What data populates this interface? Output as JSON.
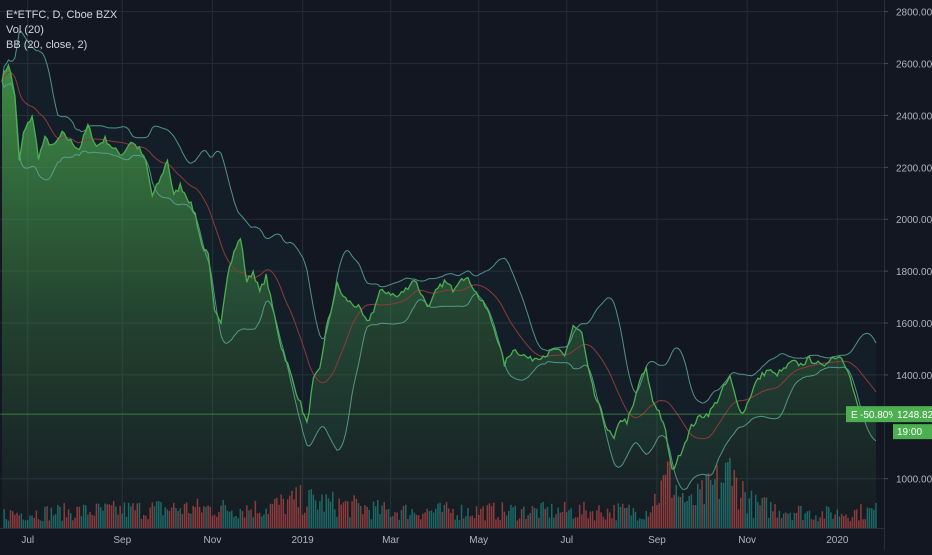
{
  "legend": {
    "symbol_line": "E*ETFC, D, Cboe BZX",
    "indicator_volume": "Vol (20)",
    "indicator_bb": "BB (20, close, 2)"
  },
  "price_badge": {
    "symbol": "E",
    "change": "-50.80%",
    "price": "1248.82",
    "countdown": "19:00"
  },
  "colors": {
    "background": "#131722",
    "price_line": "#4caf50",
    "bb_band": "#5aa897",
    "bb_basis": "#8e3a3a",
    "volume_up": "#26a69a",
    "volume_down": "#ef5350",
    "badge": "#4caf50"
  },
  "chart_data": {
    "type": "area",
    "y_axis": {
      "ticks": [
        "2800.00",
        "2600.00",
        "2400.00",
        "2200.00",
        "2000.00",
        "1800.00",
        "1600.00",
        "1400.00",
        "1000.00"
      ],
      "ylim": [
        810,
        2845
      ],
      "grid": true
    },
    "x_axis": {
      "ticks": [
        {
          "label": "Jul",
          "t": 12
        },
        {
          "label": "Sep",
          "t": 56
        },
        {
          "label": "Nov",
          "t": 98
        },
        {
          "label": "2019",
          "t": 140
        },
        {
          "label": "Mar",
          "t": 181
        },
        {
          "label": "May",
          "t": 222
        },
        {
          "label": "Jul",
          "t": 263
        },
        {
          "label": "Sep",
          "t": 305
        },
        {
          "label": "Nov",
          "t": 347
        },
        {
          "label": "2020",
          "t": 389
        }
      ],
      "range": [
        0,
        407
      ],
      "grid": true
    },
    "last_price": 1248.82,
    "price_keypoints": [
      [
        0,
        2540
      ],
      [
        3,
        2600
      ],
      [
        6,
        2480
      ],
      [
        8,
        2220
      ],
      [
        10,
        2330
      ],
      [
        14,
        2400
      ],
      [
        17,
        2240
      ],
      [
        20,
        2310
      ],
      [
        24,
        2280
      ],
      [
        28,
        2330
      ],
      [
        32,
        2300
      ],
      [
        36,
        2270
      ],
      [
        40,
        2360
      ],
      [
        44,
        2280
      ],
      [
        48,
        2310
      ],
      [
        52,
        2270
      ],
      [
        56,
        2250
      ],
      [
        60,
        2300
      ],
      [
        64,
        2270
      ],
      [
        67,
        2220
      ],
      [
        70,
        2090
      ],
      [
        74,
        2160
      ],
      [
        77,
        2230
      ],
      [
        80,
        2090
      ],
      [
        83,
        2130
      ],
      [
        86,
        2090
      ],
      [
        90,
        2020
      ],
      [
        93,
        1900
      ],
      [
        96,
        1860
      ],
      [
        99,
        1640
      ],
      [
        102,
        1610
      ],
      [
        105,
        1790
      ],
      [
        108,
        1870
      ],
      [
        111,
        1930
      ],
      [
        114,
        1760
      ],
      [
        117,
        1800
      ],
      [
        120,
        1720
      ],
      [
        123,
        1780
      ],
      [
        126,
        1660
      ],
      [
        130,
        1510
      ],
      [
        133,
        1440
      ],
      [
        136,
        1360
      ],
      [
        139,
        1290
      ],
      [
        142,
        1210
      ],
      [
        145,
        1380
      ],
      [
        148,
        1420
      ],
      [
        151,
        1580
      ],
      [
        153,
        1640
      ],
      [
        156,
        1750
      ],
      [
        159,
        1700
      ],
      [
        162,
        1680
      ],
      [
        166,
        1660
      ],
      [
        170,
        1600
      ],
      [
        173,
        1650
      ],
      [
        176,
        1720
      ],
      [
        180,
        1720
      ],
      [
        184,
        1700
      ],
      [
        188,
        1730
      ],
      [
        192,
        1770
      ],
      [
        196,
        1700
      ],
      [
        199,
        1660
      ],
      [
        202,
        1720
      ],
      [
        206,
        1760
      ],
      [
        210,
        1730
      ],
      [
        214,
        1780
      ],
      [
        218,
        1760
      ],
      [
        222,
        1700
      ],
      [
        226,
        1650
      ],
      [
        230,
        1560
      ],
      [
        234,
        1440
      ],
      [
        238,
        1500
      ],
      [
        242,
        1480
      ],
      [
        246,
        1460
      ],
      [
        250,
        1470
      ],
      [
        254,
        1480
      ],
      [
        258,
        1500
      ],
      [
        262,
        1470
      ],
      [
        266,
        1590
      ],
      [
        270,
        1560
      ],
      [
        273,
        1420
      ],
      [
        276,
        1320
      ],
      [
        279,
        1260
      ],
      [
        282,
        1190
      ],
      [
        285,
        1150
      ],
      [
        288,
        1230
      ],
      [
        291,
        1220
      ],
      [
        294,
        1280
      ],
      [
        297,
        1380
      ],
      [
        300,
        1420
      ],
      [
        303,
        1300
      ],
      [
        306,
        1260
      ],
      [
        309,
        1180
      ],
      [
        312,
        1030
      ],
      [
        315,
        1080
      ],
      [
        318,
        1140
      ],
      [
        321,
        1200
      ],
      [
        325,
        1240
      ],
      [
        329,
        1250
      ],
      [
        333,
        1300
      ],
      [
        336,
        1350
      ],
      [
        339,
        1390
      ],
      [
        342,
        1300
      ],
      [
        345,
        1250
      ],
      [
        348,
        1310
      ],
      [
        351,
        1370
      ],
      [
        354,
        1400
      ],
      [
        357,
        1420
      ],
      [
        360,
        1400
      ],
      [
        364,
        1420
      ],
      [
        368,
        1450
      ],
      [
        372,
        1440
      ],
      [
        376,
        1460
      ],
      [
        379,
        1450
      ],
      [
        382,
        1430
      ],
      [
        385,
        1460
      ],
      [
        388,
        1470
      ],
      [
        391,
        1470
      ],
      [
        394,
        1420
      ],
      [
        397,
        1320
      ],
      [
        400,
        1240
      ],
      [
        403,
        1220
      ],
      [
        407,
        1248.82
      ]
    ],
    "volume_keypoints": [
      [
        0,
        0.25
      ],
      [
        40,
        0.3
      ],
      [
        80,
        0.35
      ],
      [
        120,
        0.35
      ],
      [
        140,
        0.5
      ],
      [
        180,
        0.3
      ],
      [
        220,
        0.3
      ],
      [
        260,
        0.3
      ],
      [
        300,
        0.3
      ],
      [
        311,
        0.9
      ],
      [
        320,
        0.4
      ],
      [
        339,
        0.95
      ],
      [
        350,
        0.4
      ],
      [
        380,
        0.25
      ],
      [
        407,
        0.3
      ]
    ],
    "volume_spikes": [
      [
        311,
        0.95
      ],
      [
        339,
        1.0
      ],
      [
        315,
        0.45
      ],
      [
        340,
        0.6
      ]
    ]
  }
}
